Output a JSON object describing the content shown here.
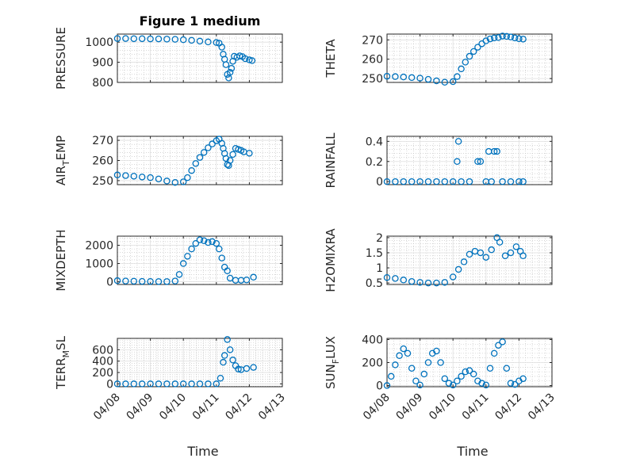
{
  "figure": {
    "title": "Figure 1 medium",
    "marker_color": "#0072BD",
    "marker": "circle"
  },
  "chart_data": [
    {
      "type": "scatter",
      "ylabel": "PRESSURE",
      "ylim": [
        800,
        1040
      ],
      "yticks": [
        800,
        900,
        1000
      ],
      "xlim": [
        "04/08",
        "04/13"
      ],
      "xticks": [
        "04/08",
        "04/09",
        "04/10",
        "04/11",
        "04/12",
        "04/13"
      ],
      "show_xticklabels": false,
      "xlabel": "",
      "title": "Figure 1 medium",
      "grid": true,
      "points": [
        [
          "04/08 00:00",
          1018
        ],
        [
          "04/08 06:00",
          1018
        ],
        [
          "04/08 12:00",
          1017
        ],
        [
          "04/08 18:00",
          1017
        ],
        [
          "04/09 00:00",
          1016
        ],
        [
          "04/09 06:00",
          1016
        ],
        [
          "04/09 12:00",
          1015
        ],
        [
          "04/09 18:00",
          1014
        ],
        [
          "04/10 00:00",
          1012
        ],
        [
          "04/10 06:00",
          1009
        ],
        [
          "04/10 12:00",
          1005
        ],
        [
          "04/10 18:00",
          1001
        ],
        [
          "04/11 00:00",
          998
        ],
        [
          "04/11 02:00",
          995
        ],
        [
          "04/11 04:00",
          975
        ],
        [
          "04/11 05:00",
          940
        ],
        [
          "04/11 06:00",
          915
        ],
        [
          "04/11 07:00",
          888
        ],
        [
          "04/11 08:00",
          840
        ],
        [
          "04/11 09:00",
          822
        ],
        [
          "04/11 10:00",
          850
        ],
        [
          "04/11 11:00",
          870
        ],
        [
          "04/11 12:00",
          905
        ],
        [
          "04/11 13:00",
          930
        ],
        [
          "04/11 15:00",
          925
        ],
        [
          "04/11 17:00",
          932
        ],
        [
          "04/11 19:00",
          928
        ],
        [
          "04/11 21:00",
          918
        ],
        [
          "04/12 00:00",
          912
        ],
        [
          "04/12 02:00",
          908
        ]
      ]
    },
    {
      "type": "scatter",
      "ylabel": "THETA",
      "ylim": [
        248,
        273
      ],
      "yticks": [
        250,
        260,
        270
      ],
      "xlim": [
        "04/08",
        "04/13"
      ],
      "xticks": [
        "04/08",
        "04/09",
        "04/10",
        "04/11",
        "04/12",
        "04/13"
      ],
      "show_xticklabels": false,
      "grid": true,
      "points": [
        [
          "04/08 00:00",
          251.2
        ],
        [
          "04/08 06:00",
          251
        ],
        [
          "04/08 12:00",
          250.8
        ],
        [
          "04/08 18:00",
          250.5
        ],
        [
          "04/09 00:00",
          250.2
        ],
        [
          "04/09 06:00",
          249.6
        ],
        [
          "04/09 12:00",
          248.8
        ],
        [
          "04/09 18:00",
          248.1
        ],
        [
          "04/10 00:00",
          248.4
        ],
        [
          "04/10 03:00",
          251
        ],
        [
          "04/10 06:00",
          255
        ],
        [
          "04/10 09:00",
          258.5
        ],
        [
          "04/10 12:00",
          261.5
        ],
        [
          "04/10 15:00",
          264
        ],
        [
          "04/10 18:00",
          266.2
        ],
        [
          "04/10 21:00",
          268
        ],
        [
          "04/11 00:00",
          269.5
        ],
        [
          "04/11 03:00",
          270.5
        ],
        [
          "04/11 06:00",
          271
        ],
        [
          "04/11 09:00",
          271.2
        ],
        [
          "04/11 12:00",
          272
        ],
        [
          "04/11 15:00",
          271.8
        ],
        [
          "04/11 18:00",
          271.5
        ],
        [
          "04/11 21:00",
          271
        ],
        [
          "04/12 00:00",
          270.6
        ],
        [
          "04/12 03:00",
          270.4
        ]
      ]
    },
    {
      "type": "scatter",
      "ylabel": "AIR",
      "ylabel_subscript": "T",
      "ylabel_suffix": "EMP",
      "ylim": [
        248,
        272
      ],
      "yticks": [
        250,
        260,
        270
      ],
      "xlim": [
        "04/08",
        "04/13"
      ],
      "xticks": [
        "04/08",
        "04/09",
        "04/10",
        "04/11",
        "04/12",
        "04/13"
      ],
      "show_xticklabels": false,
      "grid": true,
      "points": [
        [
          "04/08 00:00",
          252.8
        ],
        [
          "04/08 06:00",
          252.5
        ],
        [
          "04/08 12:00",
          252.2
        ],
        [
          "04/08 18:00",
          251.8
        ],
        [
          "04/09 00:00",
          251.5
        ],
        [
          "04/09 06:00",
          250.8
        ],
        [
          "04/09 12:00",
          249.8
        ],
        [
          "04/09 18:00",
          249.1
        ],
        [
          "04/10 00:00",
          249.4
        ],
        [
          "04/10 03:00",
          251.5
        ],
        [
          "04/10 06:00",
          255
        ],
        [
          "04/10 09:00",
          258.5
        ],
        [
          "04/10 12:00",
          261.5
        ],
        [
          "04/10 15:00",
          264
        ],
        [
          "04/10 18:00",
          266.3
        ],
        [
          "04/10 21:00",
          268.2
        ],
        [
          "04/11 00:00",
          269.8
        ],
        [
          "04/11 02:00",
          270.6
        ],
        [
          "04/11 04:00",
          268.5
        ],
        [
          "04/11 05:00",
          266
        ],
        [
          "04/11 06:00",
          263.5
        ],
        [
          "04/11 07:00",
          261
        ],
        [
          "04/11 08:00",
          258
        ],
        [
          "04/11 09:00",
          257.5
        ],
        [
          "04/11 10:00",
          260
        ],
        [
          "04/11 12:00",
          263
        ],
        [
          "04/11 14:00",
          266
        ],
        [
          "04/11 16:00",
          265.5
        ],
        [
          "04/11 18:00",
          265
        ],
        [
          "04/11 20:00",
          264.3
        ],
        [
          "04/12 00:00",
          263.6
        ]
      ]
    },
    {
      "type": "scatter",
      "ylabel": "RAINFALL",
      "ylim": [
        -0.03,
        0.45
      ],
      "yticks": [
        0,
        0.2,
        0.4
      ],
      "xlim": [
        "04/08",
        "04/13"
      ],
      "xticks": [
        "04/08",
        "04/09",
        "04/10",
        "04/11",
        "04/12",
        "04/13"
      ],
      "show_xticklabels": false,
      "grid": true,
      "points": [
        [
          "04/08 00:00",
          0
        ],
        [
          "04/08 06:00",
          0
        ],
        [
          "04/08 12:00",
          0
        ],
        [
          "04/08 18:00",
          0
        ],
        [
          "04/09 00:00",
          0
        ],
        [
          "04/09 06:00",
          0
        ],
        [
          "04/09 12:00",
          0
        ],
        [
          "04/09 18:00",
          0
        ],
        [
          "04/10 00:00",
          0
        ],
        [
          "04/10 03:00",
          0.2
        ],
        [
          "04/10 04:00",
          0.4
        ],
        [
          "04/10 06:00",
          0
        ],
        [
          "04/10 12:00",
          0
        ],
        [
          "04/10 18:00",
          0.2
        ],
        [
          "04/10 20:00",
          0.2
        ],
        [
          "04/11 00:00",
          0
        ],
        [
          "04/11 02:00",
          0.3
        ],
        [
          "04/11 04:00",
          0
        ],
        [
          "04/11 06:00",
          0.3
        ],
        [
          "04/11 08:00",
          0.3
        ],
        [
          "04/11 12:00",
          0
        ],
        [
          "04/11 18:00",
          0
        ],
        [
          "04/12 00:00",
          0
        ],
        [
          "04/12 03:00",
          0
        ]
      ]
    },
    {
      "type": "scatter",
      "ylabel": "MIXDEPTH",
      "ylim": [
        -150,
        2500
      ],
      "yticks": [
        0,
        1000,
        2000
      ],
      "xlim": [
        "04/08",
        "04/13"
      ],
      "xticks": [
        "04/08",
        "04/09",
        "04/10",
        "04/11",
        "04/12",
        "04/13"
      ],
      "show_xticklabels": false,
      "grid": true,
      "points": [
        [
          "04/08 00:00",
          60
        ],
        [
          "04/08 06:00",
          40
        ],
        [
          "04/08 12:00",
          30
        ],
        [
          "04/08 18:00",
          20
        ],
        [
          "04/09 00:00",
          15
        ],
        [
          "04/09 06:00",
          10
        ],
        [
          "04/09 12:00",
          10
        ],
        [
          "04/09 18:00",
          40
        ],
        [
          "04/09 21:00",
          400
        ],
        [
          "04/10 00:00",
          1000
        ],
        [
          "04/10 03:00",
          1400
        ],
        [
          "04/10 06:00",
          1800
        ],
        [
          "04/10 09:00",
          2100
        ],
        [
          "04/10 12:00",
          2300
        ],
        [
          "04/10 15:00",
          2250
        ],
        [
          "04/10 18:00",
          2150
        ],
        [
          "04/10 21:00",
          2200
        ],
        [
          "04/11 00:00",
          2100
        ],
        [
          "04/11 02:00",
          1800
        ],
        [
          "04/11 04:00",
          1300
        ],
        [
          "04/11 06:00",
          800
        ],
        [
          "04/11 08:00",
          600
        ],
        [
          "04/11 10:00",
          200
        ],
        [
          "04/11 14:00",
          80
        ],
        [
          "04/11 18:00",
          80
        ],
        [
          "04/11 22:00",
          100
        ],
        [
          "04/12 03:00",
          250
        ]
      ]
    },
    {
      "type": "scatter",
      "ylabel": "H2OMIXRA",
      "ylim": [
        0.45,
        2.05
      ],
      "yticks": [
        0.5,
        1,
        1.5,
        2
      ],
      "xlim": [
        "04/08",
        "04/13"
      ],
      "xticks": [
        "04/08",
        "04/09",
        "04/10",
        "04/11",
        "04/12",
        "04/13"
      ],
      "show_xticklabels": false,
      "grid": true,
      "points": [
        [
          "04/08 00:00",
          0.68
        ],
        [
          "04/08 06:00",
          0.65
        ],
        [
          "04/08 12:00",
          0.6
        ],
        [
          "04/08 18:00",
          0.55
        ],
        [
          "04/09 00:00",
          0.52
        ],
        [
          "04/09 06:00",
          0.5
        ],
        [
          "04/09 12:00",
          0.5
        ],
        [
          "04/09 18:00",
          0.52
        ],
        [
          "04/10 00:00",
          0.7
        ],
        [
          "04/10 04:00",
          0.95
        ],
        [
          "04/10 08:00",
          1.2
        ],
        [
          "04/10 12:00",
          1.45
        ],
        [
          "04/10 16:00",
          1.55
        ],
        [
          "04/10 20:00",
          1.5
        ],
        [
          "04/11 00:00",
          1.35
        ],
        [
          "04/11 04:00",
          1.6
        ],
        [
          "04/11 08:00",
          2
        ],
        [
          "04/11 10:00",
          1.85
        ],
        [
          "04/11 14:00",
          1.4
        ],
        [
          "04/11 18:00",
          1.5
        ],
        [
          "04/11 22:00",
          1.7
        ],
        [
          "04/12 01:00",
          1.55
        ],
        [
          "04/12 03:00",
          1.4
        ]
      ]
    },
    {
      "type": "scatter",
      "ylabel": "TERR",
      "ylabel_subscript": "M",
      "ylabel_suffix": "SL",
      "ylim": [
        -50,
        800
      ],
      "yticks": [
        0,
        200,
        400,
        600
      ],
      "xlim": [
        "04/08",
        "04/13"
      ],
      "xticks": [
        "04/08",
        "04/09",
        "04/10",
        "04/11",
        "04/12",
        "04/13"
      ],
      "show_xticklabels": true,
      "xlabel": "Time",
      "grid": true,
      "points": [
        [
          "04/08 00:00",
          0
        ],
        [
          "04/08 06:00",
          0
        ],
        [
          "04/08 12:00",
          0
        ],
        [
          "04/08 18:00",
          0
        ],
        [
          "04/09 00:00",
          0
        ],
        [
          "04/09 06:00",
          0
        ],
        [
          "04/09 12:00",
          0
        ],
        [
          "04/09 18:00",
          0
        ],
        [
          "04/10 00:00",
          0
        ],
        [
          "04/10 06:00",
          0
        ],
        [
          "04/10 12:00",
          0
        ],
        [
          "04/10 18:00",
          0
        ],
        [
          "04/11 00:00",
          0
        ],
        [
          "04/11 03:00",
          100
        ],
        [
          "04/11 05:00",
          380
        ],
        [
          "04/11 06:00",
          500
        ],
        [
          "04/11 08:00",
          780
        ],
        [
          "04/11 10:00",
          600
        ],
        [
          "04/11 12:00",
          420
        ],
        [
          "04/11 14:00",
          320
        ],
        [
          "04/11 16:00",
          260
        ],
        [
          "04/11 18:00",
          250
        ],
        [
          "04/11 22:00",
          270
        ],
        [
          "04/12 03:00",
          290
        ]
      ]
    },
    {
      "type": "scatter",
      "ylabel": "SUN",
      "ylabel_subscript": "F",
      "ylabel_suffix": "LUX",
      "ylim": [
        -10,
        410
      ],
      "yticks": [
        0,
        200,
        400
      ],
      "xlim": [
        "04/08",
        "04/13"
      ],
      "xticks": [
        "04/08",
        "04/09",
        "04/10",
        "04/11",
        "04/12",
        "04/13"
      ],
      "show_xticklabels": true,
      "xlabel": "Time",
      "grid": true,
      "points": [
        [
          "04/08 00:00",
          0
        ],
        [
          "04/08 03:00",
          80
        ],
        [
          "04/08 06:00",
          180
        ],
        [
          "04/08 09:00",
          260
        ],
        [
          "04/08 12:00",
          320
        ],
        [
          "04/08 15:00",
          280
        ],
        [
          "04/08 18:00",
          150
        ],
        [
          "04/08 21:00",
          40
        ],
        [
          "04/09 00:00",
          5
        ],
        [
          "04/09 03:00",
          100
        ],
        [
          "04/09 06:00",
          200
        ],
        [
          "04/09 09:00",
          280
        ],
        [
          "04/09 12:00",
          300
        ],
        [
          "04/09 15:00",
          200
        ],
        [
          "04/09 18:00",
          60
        ],
        [
          "04/09 21:00",
          20
        ],
        [
          "04/10 00:00",
          5
        ],
        [
          "04/10 03:00",
          40
        ],
        [
          "04/10 06:00",
          80
        ],
        [
          "04/10 09:00",
          120
        ],
        [
          "04/10 12:00",
          130
        ],
        [
          "04/10 15:00",
          100
        ],
        [
          "04/10 18:00",
          40
        ],
        [
          "04/10 21:00",
          20
        ],
        [
          "04/11 00:00",
          5
        ],
        [
          "04/11 03:00",
          150
        ],
        [
          "04/11 06:00",
          280
        ],
        [
          "04/11 09:00",
          350
        ],
        [
          "04/11 12:00",
          380
        ],
        [
          "04/11 15:00",
          150
        ],
        [
          "04/11 18:00",
          20
        ],
        [
          "04/11 21:00",
          10
        ],
        [
          "04/12 00:00",
          40
        ],
        [
          "04/12 03:00",
          60
        ]
      ]
    }
  ]
}
